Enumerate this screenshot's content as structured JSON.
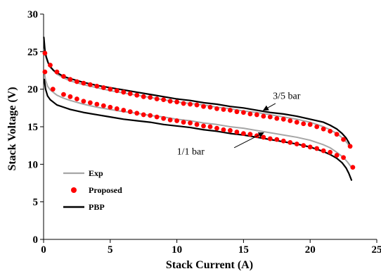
{
  "chart_data": {
    "type": "line",
    "title": "",
    "xlabel": "Stack Current  (A)",
    "ylabel": "Stack Voltage (V)",
    "xlim": [
      0,
      25
    ],
    "ylim": [
      0,
      30
    ],
    "xticks": [
      "0",
      "5",
      "10",
      "15",
      "20",
      "25"
    ],
    "yticks": [
      "0",
      "5",
      "10",
      "15",
      "20",
      "25",
      "30"
    ],
    "grid": false,
    "legend_position": "bottom-left",
    "legend": [
      {
        "label": "Exp",
        "style": "line",
        "color": "#a6a6a6"
      },
      {
        "label": "Proposed",
        "style": "marker",
        "color": "#ff0000"
      },
      {
        "label": "PBP",
        "style": "line",
        "color": "#000000"
      }
    ],
    "annotations": [
      {
        "text": "3/5 bar",
        "points_to": {
          "x": 16.5,
          "y": 17.2
        }
      },
      {
        "text": "1/1 bar",
        "points_to": {
          "x": 16.5,
          "y": 14.2
        }
      }
    ],
    "series": [
      {
        "name": "Exp",
        "group": "3/5 bar",
        "color": "#a6a6a6",
        "style": "line",
        "x": [
          0.05,
          0.15,
          0.3,
          0.5,
          1.0,
          1.5,
          2,
          3,
          4,
          5,
          6,
          7,
          8,
          9,
          10,
          11,
          12,
          13,
          14,
          15,
          16,
          17,
          18,
          19,
          20,
          21,
          21.5,
          22,
          22.5,
          22.8,
          23.0
        ],
        "y": [
          25.3,
          24.4,
          23.6,
          22.9,
          22.0,
          21.5,
          21.1,
          20.6,
          20.2,
          19.8,
          19.5,
          19.2,
          18.9,
          18.6,
          18.3,
          18.1,
          17.9,
          17.6,
          17.4,
          17.1,
          16.9,
          16.6,
          16.3,
          16.0,
          15.6,
          15.0,
          14.6,
          14.1,
          13.4,
          12.8,
          12.2
        ]
      },
      {
        "name": "Proposed",
        "group": "3/5 bar",
        "color": "#ff0000",
        "style": "marker",
        "x": [
          0.1,
          0.5,
          1.0,
          1.5,
          2.0,
          2.5,
          3.0,
          3.5,
          4.0,
          4.5,
          5.0,
          5.5,
          6.0,
          6.5,
          7.0,
          7.5,
          8.0,
          8.5,
          9.0,
          9.5,
          10.0,
          10.5,
          11.0,
          11.5,
          12.0,
          12.5,
          13.0,
          13.5,
          14.0,
          14.5,
          15.0,
          15.5,
          16.0,
          16.5,
          17.0,
          17.5,
          18.0,
          18.5,
          19.0,
          19.5,
          20.0,
          20.5,
          21.0,
          21.5,
          22.0,
          22.5,
          23.0
        ],
        "y": [
          24.8,
          23.2,
          22.3,
          21.7,
          21.3,
          21.0,
          20.8,
          20.6,
          20.4,
          20.2,
          20.0,
          19.8,
          19.6,
          19.4,
          19.2,
          19.0,
          18.9,
          18.7,
          18.6,
          18.4,
          18.3,
          18.1,
          18.0,
          17.9,
          17.7,
          17.6,
          17.4,
          17.3,
          17.2,
          17.0,
          16.9,
          16.7,
          16.6,
          16.4,
          16.3,
          16.1,
          16.0,
          15.8,
          15.6,
          15.4,
          15.3,
          15.0,
          14.7,
          14.4,
          14.0,
          13.3,
          12.4
        ]
      },
      {
        "name": "PBP",
        "group": "3/5 bar",
        "color": "#000000",
        "style": "line",
        "x": [
          0.02,
          0.1,
          0.2,
          0.35,
          0.5,
          0.75,
          1.0,
          1.5,
          2,
          3,
          4,
          5,
          6,
          7,
          8,
          9,
          10,
          11,
          12,
          13,
          14,
          15,
          16,
          17,
          18,
          19,
          20,
          21,
          21.5,
          22,
          22.4,
          22.7,
          22.9,
          23.05
        ],
        "y": [
          26.9,
          25.2,
          24.3,
          23.5,
          23.0,
          22.5,
          22.2,
          21.7,
          21.4,
          20.9,
          20.5,
          20.2,
          19.9,
          19.6,
          19.3,
          19.0,
          18.7,
          18.5,
          18.2,
          18.0,
          17.7,
          17.5,
          17.2,
          16.9,
          16.7,
          16.4,
          16.0,
          15.6,
          15.2,
          14.7,
          14.1,
          13.5,
          12.9,
          12.2
        ]
      },
      {
        "name": "Exp",
        "group": "1/1 bar",
        "color": "#a6a6a6",
        "style": "line",
        "x": [
          0.05,
          0.15,
          0.3,
          0.5,
          1.0,
          1.5,
          2,
          3,
          4,
          5,
          6,
          7,
          8,
          9,
          10,
          11,
          12,
          13,
          14,
          15,
          16,
          17,
          18,
          19,
          20,
          21,
          21.5,
          22,
          22.5,
          22.8,
          23.1
        ],
        "y": [
          22.3,
          21.2,
          20.4,
          19.9,
          19.2,
          18.8,
          18.5,
          18.0,
          17.6,
          17.3,
          17.0,
          16.8,
          16.5,
          16.3,
          16.0,
          15.8,
          15.5,
          15.3,
          15.0,
          14.8,
          14.5,
          14.2,
          13.9,
          13.6,
          13.2,
          12.6,
          12.2,
          11.6,
          10.9,
          10.3,
          9.6
        ]
      },
      {
        "name": "Proposed",
        "group": "1/1 bar",
        "color": "#ff0000",
        "style": "marker",
        "x": [
          0.1,
          0.7,
          1.5,
          2.0,
          2.5,
          3.0,
          3.5,
          4.0,
          4.5,
          5.0,
          5.5,
          6.0,
          6.5,
          7.0,
          7.5,
          8.0,
          8.5,
          9.0,
          9.5,
          10.0,
          10.5,
          11.0,
          11.5,
          12.0,
          12.5,
          13.0,
          13.5,
          14.0,
          14.5,
          15.0,
          15.5,
          16.0,
          16.5,
          17.0,
          17.5,
          18.0,
          18.5,
          19.0,
          19.5,
          20.0,
          20.5,
          21.0,
          21.5,
          22.0,
          22.5,
          23.2
        ],
        "y": [
          22.3,
          20.0,
          19.3,
          19.0,
          18.7,
          18.4,
          18.2,
          18.0,
          17.8,
          17.6,
          17.4,
          17.2,
          17.0,
          16.8,
          16.6,
          16.5,
          16.3,
          16.1,
          15.9,
          15.8,
          15.6,
          15.5,
          15.3,
          15.1,
          15.0,
          14.8,
          14.6,
          14.5,
          14.3,
          14.1,
          14.0,
          13.8,
          13.6,
          13.4,
          13.3,
          13.1,
          12.9,
          12.7,
          12.5,
          12.3,
          12.1,
          11.8,
          11.6,
          11.2,
          10.9,
          9.6
        ]
      },
      {
        "name": "PBP",
        "group": "1/1 bar",
        "color": "#000000",
        "style": "line",
        "x": [
          0.05,
          0.15,
          0.3,
          0.5,
          1.0,
          1.5,
          2,
          3,
          4,
          5,
          6,
          7,
          8,
          9,
          10,
          11,
          12,
          13,
          14,
          15,
          16,
          17,
          18,
          19,
          20,
          21,
          21.5,
          22,
          22.4,
          22.7,
          22.9,
          23.1
        ],
        "y": [
          21.3,
          20.0,
          19.1,
          18.6,
          17.9,
          17.6,
          17.3,
          16.9,
          16.6,
          16.3,
          16.0,
          15.8,
          15.6,
          15.3,
          15.1,
          14.9,
          14.6,
          14.4,
          14.1,
          13.9,
          13.6,
          13.3,
          13.0,
          12.7,
          12.3,
          11.7,
          11.3,
          10.8,
          10.2,
          9.5,
          8.8,
          7.9
        ]
      }
    ]
  }
}
